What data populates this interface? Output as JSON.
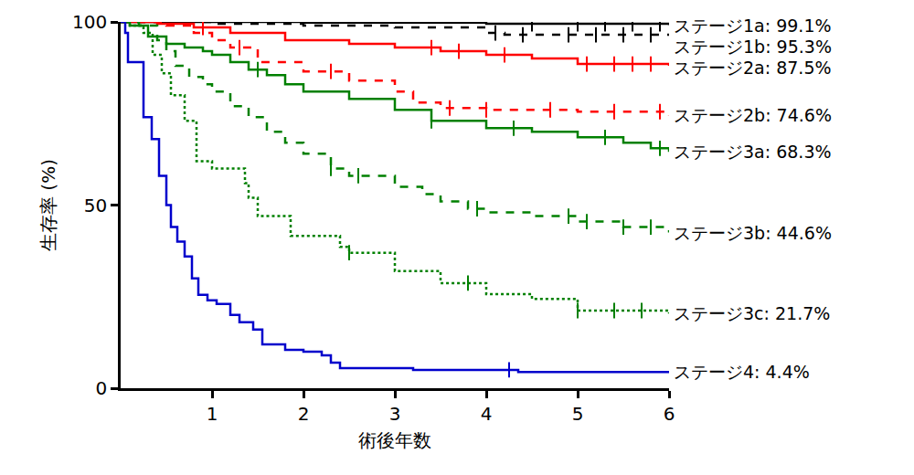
{
  "chart_data": {
    "type": "line",
    "x_label": "術後年数",
    "y_label": "生存率 (%)",
    "xlim": [
      0,
      6
    ],
    "xticks": [
      1,
      2,
      3,
      4,
      5,
      6
    ],
    "ylim": [
      0,
      100
    ],
    "yticks": [
      0,
      50,
      100
    ],
    "grid": false,
    "series": [
      {
        "name": "ステージ1a: 99.1%",
        "color": "#000000",
        "line_style": "solid",
        "x": [
          0,
          2,
          4,
          6
        ],
        "values": [
          100,
          99.8,
          99.5,
          99.1
        ],
        "censored": [
          4.5,
          5.0,
          5.3,
          5.6,
          5.9
        ]
      },
      {
        "name": "ステージ1b: 95.3%",
        "color": "#000000",
        "line_style": "dash",
        "x": [
          0,
          1,
          2,
          3,
          4,
          4.2,
          6
        ],
        "values": [
          100,
          99.5,
          99,
          98.5,
          97,
          96.5,
          96.5
        ],
        "censored": [
          4.1,
          4.4,
          4.9,
          5.2,
          5.5,
          5.8
        ]
      },
      {
        "name": "ステージ2a: 87.5%",
        "color": "#ff0000",
        "line_style": "solid",
        "x": [
          0,
          0.4,
          0.8,
          1.2,
          1.8,
          2.5,
          3.0,
          3.5,
          4.0,
          4.5,
          5.0,
          6
        ],
        "values": [
          100,
          99.5,
          98.5,
          97,
          95,
          94,
          93,
          92,
          91,
          90,
          88.5,
          88
        ],
        "censored": [
          0.9,
          3.4,
          3.7,
          4.2,
          5.1,
          5.4,
          5.6,
          5.8
        ]
      },
      {
        "name": "ステージ2b: 74.6%",
        "color": "#ff0000",
        "line_style": "dash",
        "x": [
          0,
          0.5,
          0.8,
          1.0,
          1.2,
          1.5,
          2.0,
          2.5,
          3.0,
          3.2,
          3.5,
          4.0,
          5.0,
          6
        ],
        "values": [
          100,
          99,
          97,
          95,
          93,
          89,
          86.5,
          84,
          81,
          78,
          76.5,
          76,
          75.5,
          74.5
        ],
        "censored": [
          1.3,
          2.3,
          3.6,
          4.0,
          4.7,
          5.4,
          5.9
        ]
      },
      {
        "name": "ステージ3a: 68.3%",
        "color": "#008000",
        "line_style": "solid",
        "x": [
          0,
          0.1,
          0.3,
          0.5,
          0.7,
          0.9,
          1.0,
          1.2,
          1.4,
          1.6,
          1.8,
          2.0,
          2.5,
          3.0,
          3.4,
          4.0,
          4.5,
          5.0,
          5.5,
          5.8,
          6
        ],
        "values": [
          100,
          99,
          96,
          94,
          93,
          92,
          91,
          89,
          87,
          85.5,
          83,
          81,
          79,
          76,
          73,
          71,
          70,
          68.5,
          67,
          65.5,
          64.5
        ],
        "censored": [
          1.5,
          3.4,
          4.3,
          5.3,
          5.9
        ]
      },
      {
        "name": "ステージ3b: 44.6%",
        "color": "#008000",
        "line_style": "dash",
        "x": [
          0,
          0.2,
          0.4,
          0.5,
          0.6,
          0.75,
          0.9,
          1.0,
          1.2,
          1.4,
          1.6,
          1.8,
          2.0,
          2.3,
          2.5,
          3.0,
          3.3,
          3.5,
          3.8,
          4.0,
          4.5,
          5.0,
          5.5,
          6
        ],
        "values": [
          100,
          99,
          95,
          92,
          88,
          85,
          83,
          81,
          77,
          74,
          70,
          67,
          64,
          60,
          58,
          55,
          53,
          51,
          49,
          48,
          47,
          45.5,
          44,
          42.5
        ],
        "censored": [
          2.3,
          2.6,
          3.9,
          4.9,
          5.1,
          5.5,
          5.8
        ]
      },
      {
        "name": "ステージ3c: 21.7%",
        "color": "#008000",
        "line_style": "dot",
        "x": [
          0,
          0.1,
          0.25,
          0.35,
          0.45,
          0.55,
          0.7,
          0.83,
          1.0,
          1.36,
          1.4,
          1.5,
          1.86,
          2.4,
          2.5,
          3.0,
          3.5,
          4.0,
          4.5,
          5.0,
          6
        ],
        "values": [
          100,
          99,
          97,
          91,
          86,
          80,
          73,
          62,
          60,
          56,
          52,
          47,
          41.6,
          38.6,
          37,
          32,
          28.7,
          25.7,
          24.4,
          21.2,
          20.4
        ],
        "censored": [
          2.5,
          3.8,
          5.0,
          5.4,
          5.7
        ]
      },
      {
        "name": "ステージ4: 4.4%",
        "color": "#0000cc",
        "line_style": "solid",
        "x": [
          0,
          0.05,
          0.08,
          0.25,
          0.34,
          0.42,
          0.5,
          0.55,
          0.62,
          0.7,
          0.78,
          0.85,
          0.95,
          1.05,
          1.2,
          1.3,
          1.45,
          1.55,
          1.8,
          2.0,
          2.2,
          2.3,
          2.4,
          3.2,
          4.35,
          6
        ],
        "values": [
          100,
          97,
          89,
          74,
          68,
          58,
          50,
          44,
          40,
          36,
          30,
          25.5,
          24,
          23,
          20,
          18,
          16,
          12,
          10.5,
          10,
          9,
          7,
          5.5,
          5,
          4.4,
          4.4
        ],
        "censored": [
          4.25
        ]
      }
    ]
  }
}
